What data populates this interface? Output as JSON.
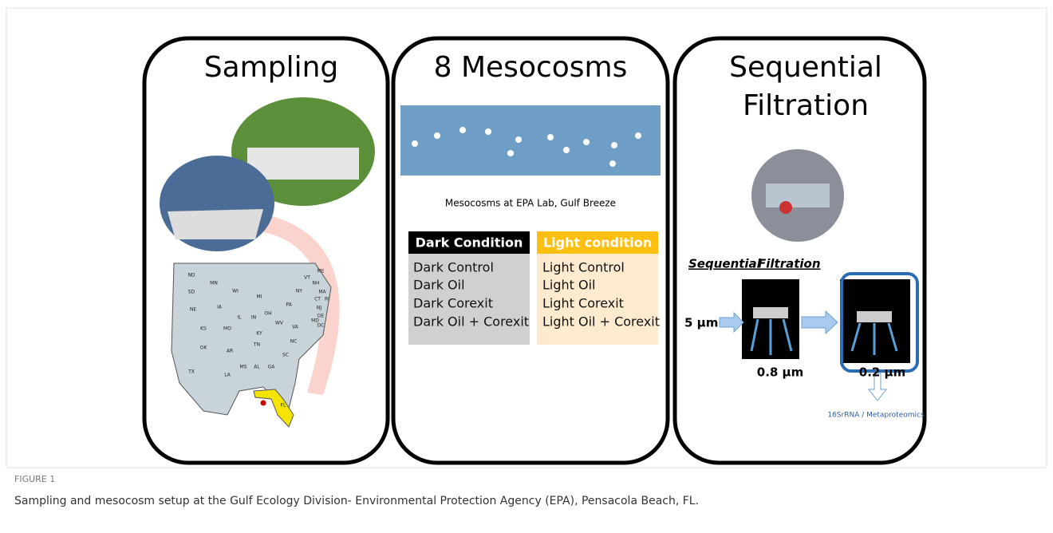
{
  "figure": {
    "panels": [
      {
        "title": "Sampling",
        "map_states": [
          "ND",
          "MN",
          "SD",
          "WI",
          "MI",
          "NE",
          "IA",
          "IL",
          "IN",
          "OH",
          "PA",
          "NY",
          "ME",
          "VT",
          "NH",
          "MA",
          "RI",
          "CT",
          "NJ",
          "DE",
          "MD",
          "DC",
          "KS",
          "MO",
          "KY",
          "WV",
          "VA",
          "OK",
          "AR",
          "TN",
          "NC",
          "SC",
          "TX",
          "LA",
          "MS",
          "AL",
          "GA",
          "FL"
        ]
      },
      {
        "title": "8 Mesocosms",
        "photo_caption": "Mesocosms at EPA Lab, Gulf Breeze",
        "conditions": [
          {
            "header": "Dark Condition",
            "items": [
              "Dark Control",
              "Dark Oil",
              "Dark Corexit",
              "Dark Oil + Corexit"
            ]
          },
          {
            "header": "Light condition",
            "items": [
              "Light Control",
              "Light Oil",
              "Light Corexit",
              "Light Oil + Corexit"
            ]
          }
        ]
      },
      {
        "title_lines": [
          "Sequential",
          "Filtration"
        ],
        "subtitle_words": [
          "Sequential",
          "Filtration"
        ],
        "input_size": "5 µm",
        "filter_sizes": [
          "0.8 µm",
          "0.2 µm"
        ],
        "output": "16SrRNA / Metaproteomics"
      }
    ],
    "label": "FIGURE 1",
    "caption": "Sampling and mesocosm setup at the Gulf Ecology Division- Environmental Protection Agency (EPA), Pensacola Beach, FL."
  }
}
